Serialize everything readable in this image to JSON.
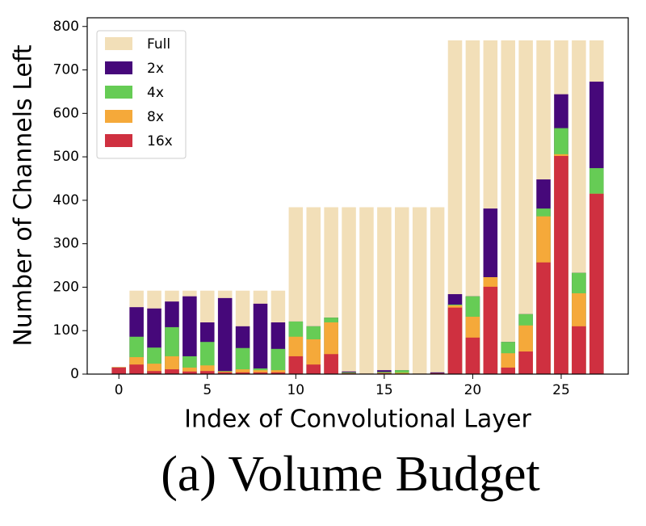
{
  "chart_data": {
    "type": "bar",
    "title": "(a) Volume Budget",
    "x_label": "Index of Convolutional Layer",
    "y_label": "Number of Channels Left",
    "x": [
      0,
      1,
      2,
      3,
      4,
      5,
      6,
      7,
      8,
      9,
      10,
      11,
      12,
      13,
      14,
      15,
      16,
      17,
      18,
      19,
      20,
      21,
      22,
      23,
      24,
      25,
      26,
      27
    ],
    "series": [
      {
        "name": "Full",
        "color": "#f2dfb8",
        "values": [
          16,
          192,
          192,
          192,
          192,
          192,
          192,
          192,
          192,
          192,
          384,
          384,
          384,
          384,
          384,
          384,
          384,
          384,
          384,
          768,
          768,
          768,
          768,
          768,
          768,
          768,
          768,
          768
        ]
      },
      {
        "name": "2x",
        "color": "#46087a",
        "values": [
          16,
          154,
          151,
          167,
          179,
          119,
          175,
          110,
          162,
          119,
          121,
          110,
          130,
          6,
          1,
          9,
          9,
          1,
          4,
          184,
          179,
          381,
          74,
          138,
          448,
          644,
          233,
          673
        ]
      },
      {
        "name": "4x",
        "color": "#66cc55",
        "values": [
          16,
          86,
          61,
          108,
          41,
          74,
          7,
          60,
          13,
          58,
          121,
          110,
          130,
          4,
          1,
          5,
          9,
          1,
          2,
          160,
          179,
          223,
          74,
          138,
          381,
          566,
          233,
          474
        ]
      },
      {
        "name": "8x",
        "color": "#f5a93a",
        "values": [
          16,
          39,
          24,
          41,
          15,
          20,
          6,
          11,
          9,
          9,
          86,
          80,
          119,
          2,
          1,
          3,
          3,
          1,
          2,
          158,
          132,
          223,
          48,
          112,
          363,
          506,
          186,
          415
        ]
      },
      {
        "name": "16x",
        "color": "#cf3040",
        "values": [
          15,
          22,
          7,
          11,
          6,
          7,
          4,
          4,
          4,
          4,
          41,
          22,
          46,
          2,
          1,
          2,
          1,
          1,
          2,
          153,
          84,
          201,
          15,
          52,
          257,
          502,
          110,
          415
        ]
      }
    ],
    "xlim": [
      -1.79,
      28.79
    ],
    "xticks": [
      0,
      5,
      10,
      15,
      20,
      25
    ],
    "ylim": [
      0,
      820
    ],
    "yticks": [
      0,
      100,
      200,
      300,
      400,
      500,
      600,
      700,
      800
    ],
    "legend": "upper left"
  }
}
